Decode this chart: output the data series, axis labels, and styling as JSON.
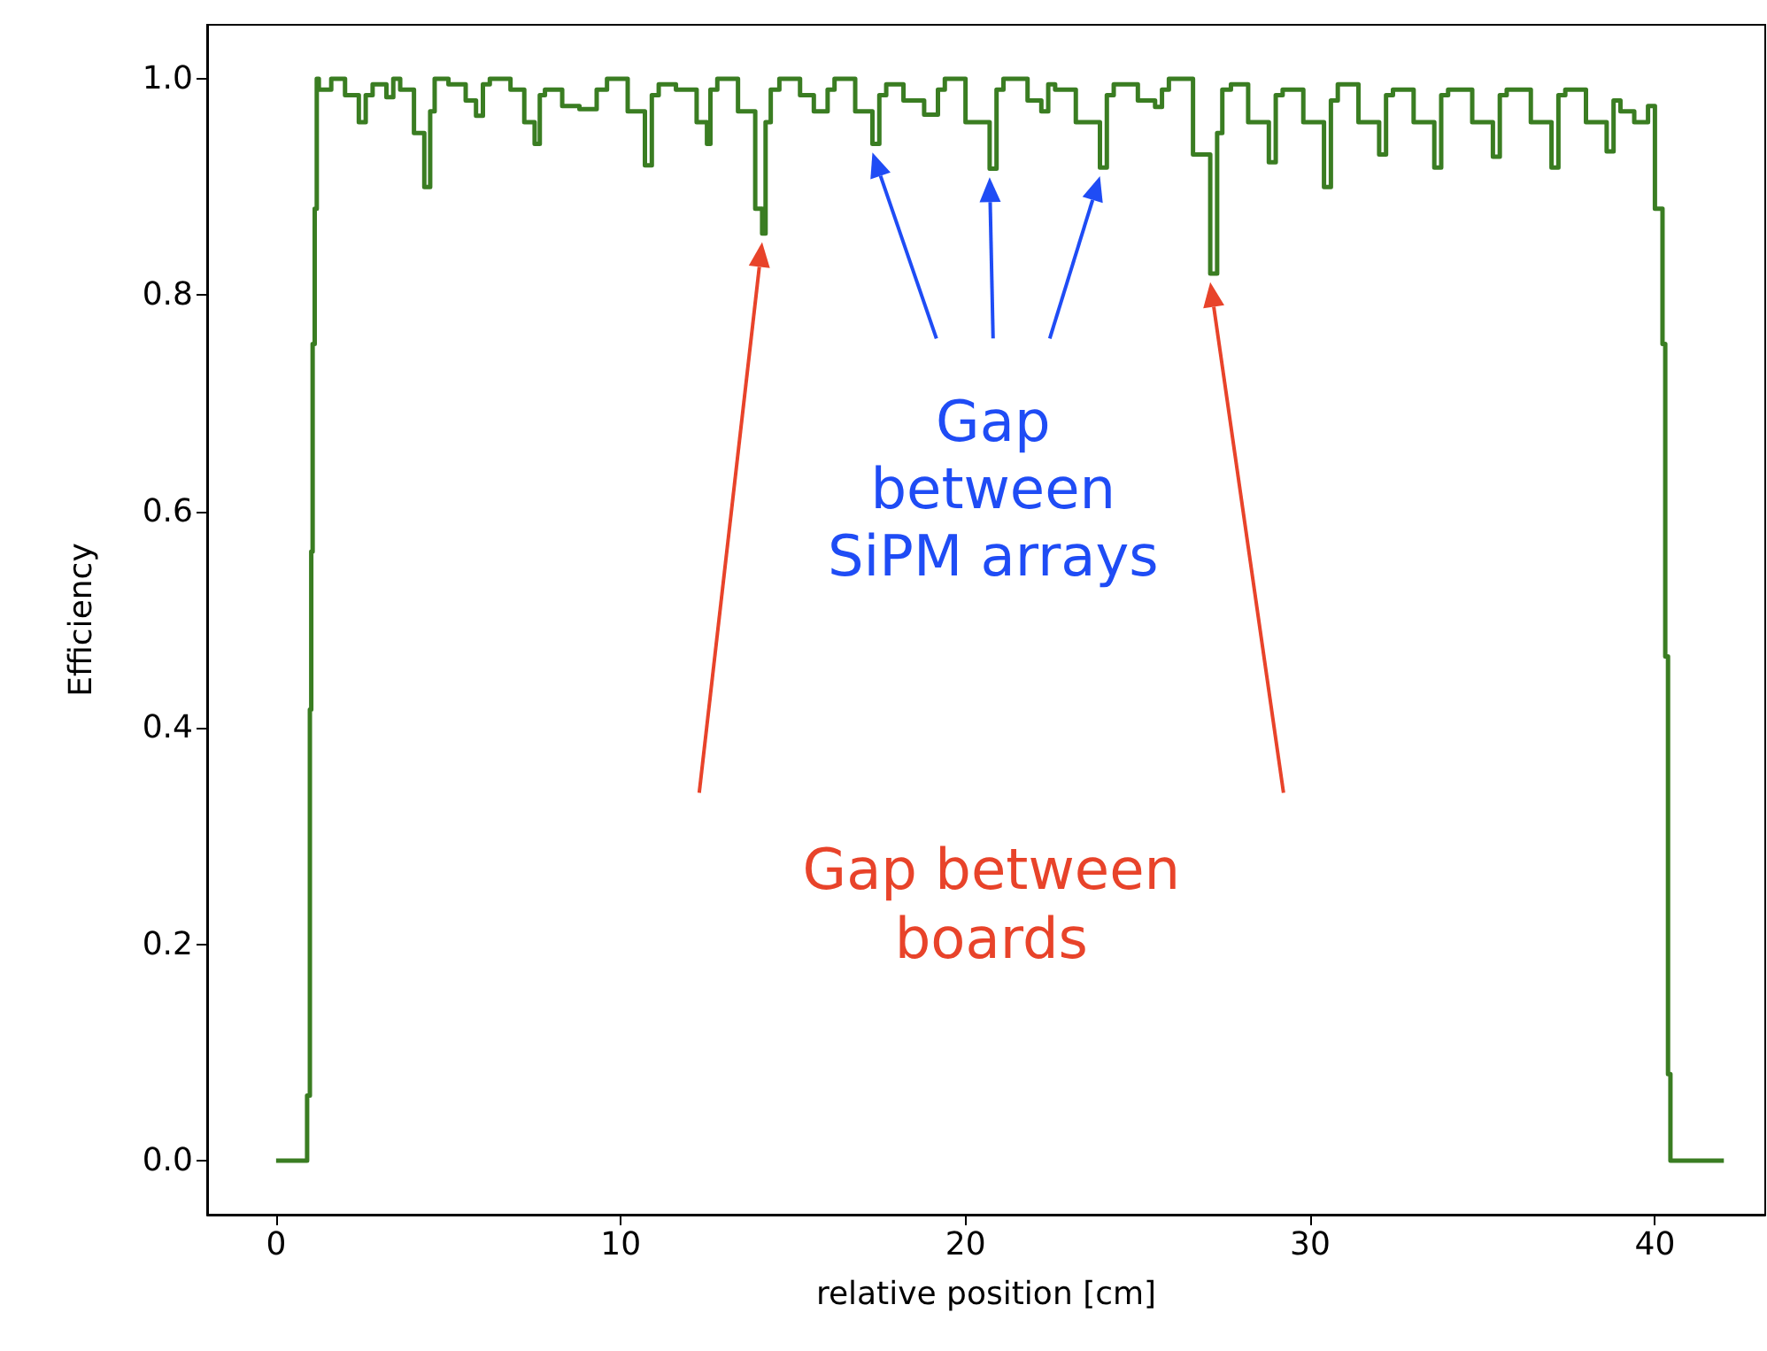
{
  "chart_data": {
    "type": "step",
    "xlabel": "relative position [cm]",
    "ylabel": "Efficiency",
    "xlim": [
      -2.0,
      43.2
    ],
    "ylim": [
      -0.05,
      1.05
    ],
    "xticks": [
      0,
      10,
      20,
      30,
      40
    ],
    "yticks": [
      {
        "value": 0,
        "label": "0.0"
      },
      {
        "value": 0.2,
        "label": "0.2"
      },
      {
        "value": 0.4,
        "label": "0.4"
      },
      {
        "value": 0.6,
        "label": "0.6"
      },
      {
        "value": 0.8,
        "label": "0.8"
      },
      {
        "value": 1.0,
        "label": "1.0"
      }
    ],
    "grid": false,
    "marker": "none",
    "line_style": "solid",
    "series": [
      {
        "color": "#3a7d22",
        "x": [
          0,
          0.9,
          0.98,
          1.02,
          1.06,
          1.12,
          1.18,
          1.24,
          1.6,
          2.0,
          2.4,
          2.6,
          2.8,
          3.2,
          3.4,
          3.6,
          4.0,
          4.3,
          4.47,
          4.6,
          5.0,
          5.5,
          5.8,
          6.0,
          6.2,
          6.8,
          7.2,
          7.5,
          7.65,
          7.8,
          8.3,
          8.8,
          9.3,
          9.6,
          10.2,
          10.7,
          10.9,
          11.1,
          11.6,
          12.2,
          12.5,
          12.6,
          12.8,
          13.4,
          13.9,
          14.1,
          14.2,
          14.35,
          14.6,
          15.2,
          15.6,
          16.0,
          16.2,
          16.8,
          17.3,
          17.5,
          17.7,
          18.2,
          18.8,
          19.2,
          19.4,
          20.0,
          20.7,
          20.9,
          21.1,
          21.8,
          22.2,
          22.4,
          22.6,
          23.2,
          23.9,
          24.1,
          24.3,
          25.0,
          25.5,
          25.7,
          25.9,
          26.6,
          27.1,
          27.3,
          27.45,
          27.7,
          28.2,
          28.8,
          29.0,
          29.2,
          29.8,
          30.4,
          30.6,
          30.8,
          31.4,
          32.0,
          32.2,
          32.4,
          33.0,
          33.6,
          33.8,
          34.0,
          34.7,
          35.3,
          35.5,
          35.7,
          36.4,
          37.0,
          37.2,
          37.4,
          38.0,
          38.6,
          38.8,
          39.0,
          39.4,
          39.8,
          40.0,
          40.22,
          40.3,
          40.38,
          40.45,
          40.5,
          42
        ],
        "values": [
          0,
          0.06,
          0.417,
          0.563,
          0.755,
          0.88,
          1.0,
          0.99,
          1.0,
          0.985,
          0.96,
          0.985,
          0.995,
          0.983,
          1.0,
          0.99,
          0.95,
          0.9,
          0.97,
          1.0,
          0.995,
          0.98,
          0.966,
          0.995,
          1.0,
          0.99,
          0.96,
          0.94,
          0.985,
          0.99,
          0.975,
          0.972,
          0.99,
          1.0,
          0.97,
          0.92,
          0.985,
          0.995,
          0.99,
          0.96,
          0.94,
          0.99,
          1.0,
          0.97,
          0.88,
          0.857,
          0.96,
          0.99,
          1.0,
          0.985,
          0.97,
          0.99,
          1.0,
          0.97,
          0.94,
          0.985,
          0.995,
          0.98,
          0.967,
          0.99,
          1.0,
          0.96,
          0.917,
          0.99,
          1.0,
          0.98,
          0.97,
          0.995,
          0.99,
          0.96,
          0.918,
          0.985,
          0.995,
          0.98,
          0.974,
          0.99,
          1.0,
          0.93,
          0.82,
          0.95,
          0.99,
          0.995,
          0.96,
          0.923,
          0.985,
          0.99,
          0.96,
          0.9,
          0.98,
          0.995,
          0.96,
          0.93,
          0.985,
          0.99,
          0.96,
          0.918,
          0.985,
          0.99,
          0.96,
          0.928,
          0.985,
          0.99,
          0.96,
          0.918,
          0.985,
          0.99,
          0.96,
          0.933,
          0.98,
          0.97,
          0.96,
          0.975,
          0.88,
          0.755,
          0.466,
          0.08,
          0,
          0,
          0
        ]
      }
    ],
    "annotations": [
      "Gap between SiPM arrays",
      "Gap between boards"
    ]
  }
}
